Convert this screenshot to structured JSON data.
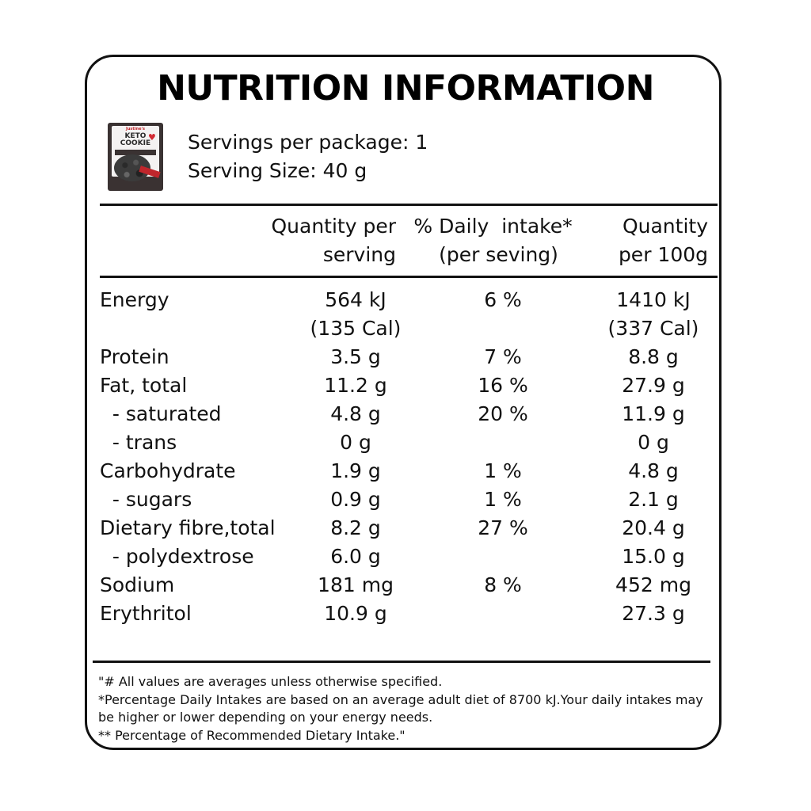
{
  "title": "NUTRITION INFORMATION",
  "package": {
    "brand": "Justine's",
    "name_line1": "KETO",
    "name_line2": "COOKIE",
    "icon": "cookie-package-image"
  },
  "servings_per_package": "Servings per package: 1",
  "serving_size": "Serving Size: 40 g",
  "headers": {
    "qty_serving_line1": "Quantity per",
    "qty_serving_line2": "serving",
    "daily_line1": "% Daily  intake*",
    "daily_line2": "(per seving)",
    "qty_100g_line1": "Quantity",
    "qty_100g_line2": "per 100g"
  },
  "rows": [
    {
      "label": "Energy",
      "per_serving": "564 kJ",
      "per_serving_2": "(135 Cal)",
      "daily": "6 %",
      "per_100g": "1410 kJ",
      "per_100g_2": "(337 Cal)"
    },
    {
      "label": "Protein",
      "per_serving": "3.5 g",
      "daily": "7 %",
      "per_100g": "8.8 g"
    },
    {
      "label": "Fat, total",
      "per_serving": "11.2 g",
      "daily": "16 %",
      "per_100g": "27.9 g"
    },
    {
      "label": "  - saturated",
      "per_serving": "4.8 g",
      "daily": "20 %",
      "per_100g": "11.9 g"
    },
    {
      "label": "  - trans",
      "per_serving": "0 g",
      "daily": "",
      "per_100g": "0 g"
    },
    {
      "label": "Carbohydrate",
      "per_serving": "1.9 g",
      "daily": "1 %",
      "per_100g": "4.8 g"
    },
    {
      "label": "  - sugars",
      "per_serving": "0.9 g",
      "daily": "1 %",
      "per_100g": "2.1 g"
    },
    {
      "label": "Dietary fibre,total",
      "per_serving": "8.2 g",
      "daily": "27 %",
      "per_100g": "20.4 g"
    },
    {
      "label": "  - polydextrose",
      "per_serving": "6.0 g",
      "daily": "",
      "per_100g": "15.0 g"
    },
    {
      "label": "Sodium",
      "per_serving": "181 mg",
      "daily": "8 %",
      "per_100g": "452 mg"
    },
    {
      "label": "Erythritol",
      "per_serving": "10.9 g",
      "daily": "",
      "per_100g": "27.3 g"
    }
  ],
  "footnotes": [
    "\"# All values are averages unless otherwise specified.",
    "*Percentage Daily Intakes are based on an average adult diet of 8700 kJ.Your daily intakes may",
    "be higher or lower depending on your energy needs.",
    "** Percentage of Recommended Dietary Intake.\""
  ]
}
